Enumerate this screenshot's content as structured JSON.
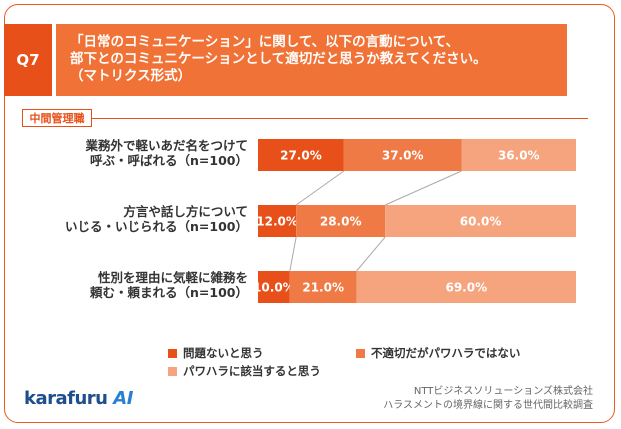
{
  "question": {
    "tag": "Q7",
    "lines": [
      "「日常のコミュニケーション」に関して、以下の言動について、",
      "部下とのコミュニケーションとして適切だと思うか教えてください。",
      "（マトリクス形式）"
    ]
  },
  "segment": "中間管理職",
  "colors": {
    "accent": "#e8501a",
    "frame": "#ee5a24"
  },
  "chart_data": {
    "type": "bar",
    "orientation": "horizontal",
    "stacked": true,
    "percent": true,
    "categories": [
      [
        "業務外で軽いあだ名をつけて",
        "呼ぶ・呼ばれる（n=100）"
      ],
      [
        "方言や話し方について",
        "いじる・いじられる（n=100）"
      ],
      [
        "性別を理由に気軽に雑務を",
        "頼む・頼まれる（n=100）"
      ]
    ],
    "series": [
      {
        "name": "問題ないと思う",
        "color": "#e8501a",
        "values": [
          27.0,
          12.0,
          10.0
        ]
      },
      {
        "name": "不適切だがパワハラではない",
        "color": "#f07a45",
        "values": [
          37.0,
          28.0,
          21.0
        ]
      },
      {
        "name": "パワハラに該当すると思う",
        "color": "#f5a47e",
        "values": [
          36.0,
          60.0,
          69.0
        ]
      }
    ],
    "xlim": [
      0,
      100
    ],
    "value_suffix": "%",
    "value_decimals": 1
  },
  "logo": {
    "text": "karafuru",
    "ai": "AI"
  },
  "source": [
    "NTTビジネスソリューションズ株式会社",
    "ハラスメントの境界線に関する世代間比較調査"
  ]
}
